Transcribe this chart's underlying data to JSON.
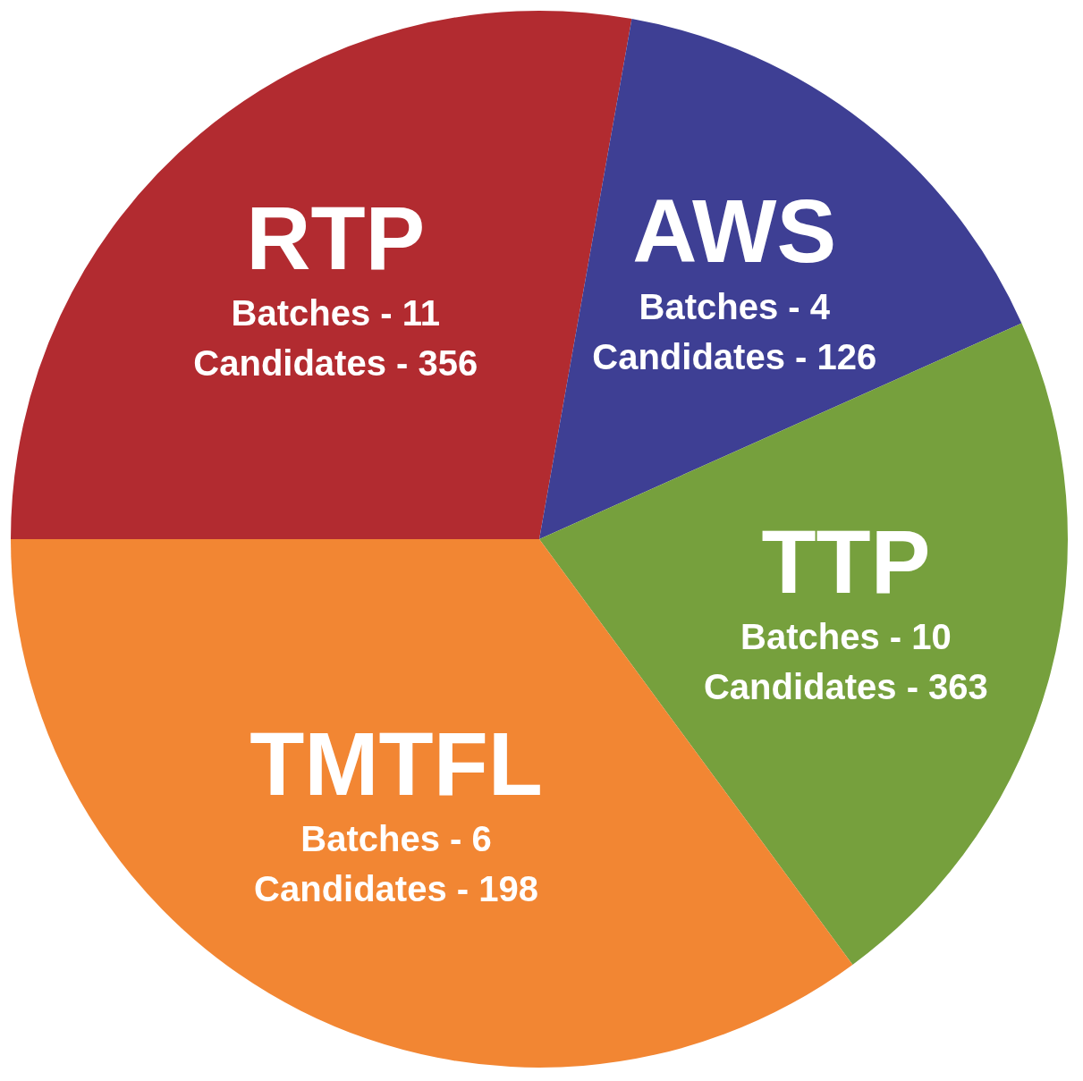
{
  "chart_data": {
    "type": "pie",
    "categories": [
      "RTP",
      "AWS",
      "TTP",
      "TMTFL"
    ],
    "values": [
      27.8,
      15.5,
      21.6,
      35.1
    ],
    "colors": [
      "#b22b30",
      "#3e3f94",
      "#76a03d",
      "#f28633"
    ],
    "annotations": [
      {
        "text": "Batches - 11",
        "x": "RTP"
      },
      {
        "text": "Candidates - 356",
        "x": "RTP"
      },
      {
        "text": "Batches - 4",
        "x": "AWS"
      },
      {
        "text": "Candidates - 126",
        "x": "AWS"
      },
      {
        "text": "Batches - 10",
        "x": "TTP"
      },
      {
        "text": "Candidates - 363",
        "x": "TTP"
      },
      {
        "text": "Batches - 6",
        "x": "TMTFL"
      },
      {
        "text": "Candidates - 198",
        "x": "TMTFL"
      }
    ]
  }
}
